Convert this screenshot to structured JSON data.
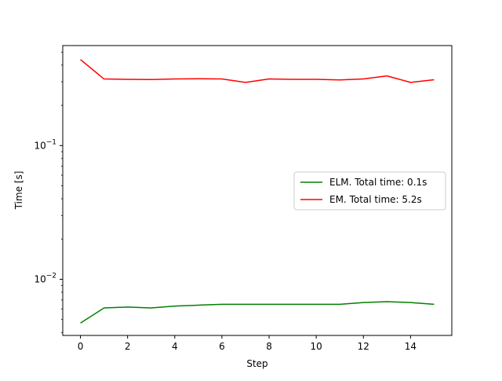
{
  "chart_data": {
    "type": "line",
    "title": "",
    "xlabel": "Step",
    "ylabel": "Time [s]",
    "yscale": "log",
    "xlim": [
      -0.75,
      15.75
    ],
    "ylim": [
      0.0038,
      0.56
    ],
    "xticks": [
      0,
      2,
      4,
      6,
      8,
      10,
      12,
      14
    ],
    "xtick_labels": [
      "0",
      "2",
      "4",
      "6",
      "8",
      "10",
      "12",
      "14"
    ],
    "yticks": [
      {
        "value": 0.01,
        "base": "10",
        "exp": "−2"
      },
      {
        "value": 0.1,
        "base": "10",
        "exp": "−1"
      }
    ],
    "grid": false,
    "legend": "center-right",
    "x": [
      0,
      1,
      2,
      3,
      4,
      5,
      6,
      7,
      8,
      9,
      10,
      11,
      12,
      13,
      14,
      15
    ],
    "series": [
      {
        "name": "ELM. Total time: 0.1s",
        "color": "#008000",
        "values": [
          0.0047,
          0.0061,
          0.0062,
          0.0061,
          0.0063,
          0.0064,
          0.0065,
          0.0065,
          0.0065,
          0.0065,
          0.0065,
          0.0065,
          0.0067,
          0.0068,
          0.0067,
          0.0065
        ]
      },
      {
        "name": "EM. Total time: 5.2s",
        "color": "#ff0000",
        "values": [
          0.44,
          0.315,
          0.313,
          0.312,
          0.315,
          0.316,
          0.315,
          0.297,
          0.315,
          0.313,
          0.313,
          0.31,
          0.315,
          0.332,
          0.297,
          0.311
        ]
      }
    ]
  }
}
